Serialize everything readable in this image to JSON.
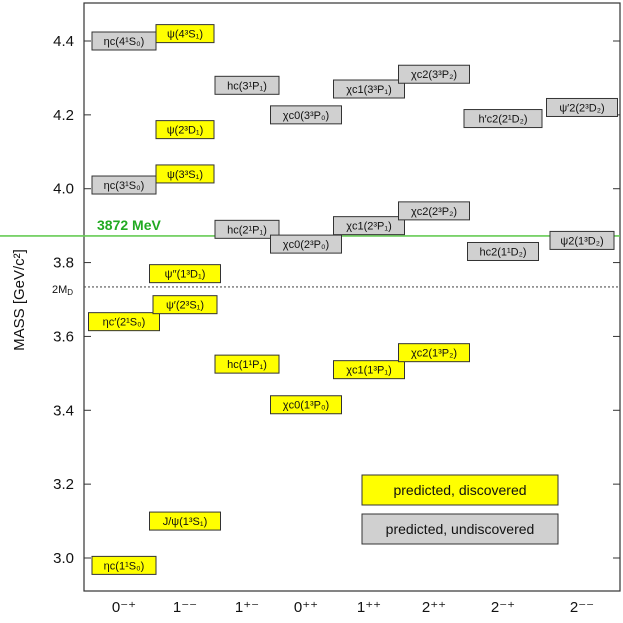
{
  "chart_data": {
    "type": "scatter",
    "ylabel": "MASS  [GeV/c²]",
    "ylim": [
      2.93,
      4.5
    ],
    "yticks": [
      "3.0",
      "3.2",
      "3.4",
      "3.6",
      "3.8",
      "4.0",
      "4.2",
      "4.4"
    ],
    "categories": [
      "0⁻⁺",
      "1⁻⁻",
      "1⁺⁻",
      "0⁺⁺",
      "1⁺⁺",
      "2⁺⁺",
      "2⁻⁺",
      "2⁻⁻"
    ],
    "reference_lines": [
      {
        "label": "3872 MeV",
        "value": 3.872,
        "color": "#66cc55",
        "style": "solid"
      },
      {
        "label": "2M",
        "label_sub": "D",
        "value": 3.734,
        "color": "#555555",
        "style": "dotted"
      }
    ],
    "legend": [
      {
        "label": "predicted, discovered",
        "color": "#ffff00"
      },
      {
        "label": "predicted, undiscovered",
        "color": "#d0d0d0"
      }
    ],
    "series": [
      {
        "name": "predicted, discovered",
        "color": "#ffff00",
        "points": [
          {
            "label": "ηc(1¹S₀)",
            "category": 0,
            "y": 2.98
          },
          {
            "label": "ηc′(2¹S₀)",
            "category": 0,
            "y": 3.64
          },
          {
            "label": "J/ψ(1³S₁)",
            "category": 1,
            "y": 3.1
          },
          {
            "label": "ψ′(2³S₁)",
            "category": 1,
            "y": 3.686
          },
          {
            "label": "ψ′′(1³D₁)",
            "category": 1,
            "y": 3.77
          },
          {
            "label": "ψ(3³S₁)",
            "category": 1,
            "y": 4.04
          },
          {
            "label": "ψ(2³D₁)",
            "category": 1,
            "y": 4.16
          },
          {
            "label": "ψ(4³S₁)",
            "category": 1,
            "y": 4.42
          },
          {
            "label": "hc(1¹P₁)",
            "category": 2,
            "y": 3.525
          },
          {
            "label": "χc0(1³P₀)",
            "category": 3,
            "y": 3.415
          },
          {
            "label": "χc1(1³P₁)",
            "category": 4,
            "y": 3.51
          },
          {
            "label": "χc2(1³P₂)",
            "category": 5,
            "y": 3.556
          }
        ]
      },
      {
        "name": "predicted, undiscovered",
        "color": "#d0d0d0",
        "points": [
          {
            "label": "ηc(3¹S₀)",
            "category": 0,
            "y": 4.01
          },
          {
            "label": "ηc(4¹S₀)",
            "category": 0,
            "y": 4.4
          },
          {
            "label": "hc(2¹P₁)",
            "category": 2,
            "y": 3.89
          },
          {
            "label": "hc(3¹P₁)",
            "category": 2,
            "y": 4.28
          },
          {
            "label": "χc0(2³P₀)",
            "category": 3,
            "y": 3.85
          },
          {
            "label": "χc0(3³P₀)",
            "category": 3,
            "y": 4.2
          },
          {
            "label": "χc1(2³P₁)",
            "category": 4,
            "y": 3.9
          },
          {
            "label": "χc1(3³P₁)",
            "category": 4,
            "y": 4.27
          },
          {
            "label": "χc2(2³P₂)",
            "category": 5,
            "y": 3.94
          },
          {
            "label": "χc2(3³P₂)",
            "category": 5,
            "y": 4.31
          },
          {
            "label": "hc2(1¹D₂)",
            "category": 6,
            "y": 3.83
          },
          {
            "label": "h′c2(2¹D₂)",
            "category": 6,
            "y": 4.19
          },
          {
            "label": "ψ2(1³D₂)",
            "category": 7,
            "y": 3.86
          },
          {
            "label": "ψ′2(2³D₂)",
            "category": 7,
            "y": 4.22
          }
        ]
      }
    ]
  }
}
